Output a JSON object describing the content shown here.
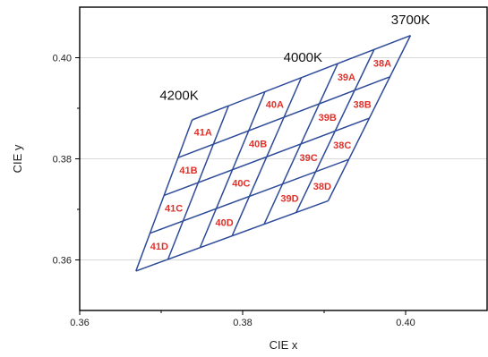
{
  "chart_data": {
    "type": "scatter",
    "title": "",
    "xlabel": "CIE x",
    "ylabel": "CIE y",
    "xlim": [
      0.36,
      0.41
    ],
    "ylim": [
      0.35,
      0.41
    ],
    "x_ticks": [
      0.36,
      0.38,
      0.4
    ],
    "y_ticks": [
      0.36,
      0.38,
      0.4
    ],
    "x_tick_labels": [
      "0.36",
      "0.38",
      "0.40"
    ],
    "y_tick_labels": [
      "0.36",
      "0.38",
      "0.40"
    ],
    "grid": "horizontal",
    "colors": {
      "grid_line": "#2e4b9a",
      "bin_label": "#e0312a",
      "gridline": "#d9d9d9",
      "axis": "#000000"
    },
    "quadrangle_grid": {
      "rows": 4,
      "cols": 6,
      "corners": {
        "bottom_left": [
          0.3669,
          0.3578
        ],
        "bottom_right": [
          0.3905,
          0.3717
        ],
        "top_left": [
          0.3738,
          0.3877
        ],
        "top_right": [
          0.4006,
          0.4044
        ]
      }
    },
    "bins": [
      {
        "label": "41A",
        "row": 0,
        "col": 0
      },
      {
        "label": "40A",
        "row": 0,
        "col": 2
      },
      {
        "label": "39A",
        "row": 0,
        "col": 4
      },
      {
        "label": "38A",
        "row": 0,
        "col": 5
      },
      {
        "label": "41B",
        "row": 1,
        "col": 0
      },
      {
        "label": "40B",
        "row": 1,
        "col": 2
      },
      {
        "label": "39B",
        "row": 1,
        "col": 4
      },
      {
        "label": "38B",
        "row": 1,
        "col": 5
      },
      {
        "label": "41C",
        "row": 2,
        "col": 0
      },
      {
        "label": "40C",
        "row": 2,
        "col": 2
      },
      {
        "label": "39C",
        "row": 2,
        "col": 4
      },
      {
        "label": "38C",
        "row": 2,
        "col": 5
      },
      {
        "label": "41D",
        "row": 3,
        "col": 0
      },
      {
        "label": "40D",
        "row": 3,
        "col": 2
      },
      {
        "label": "39D",
        "row": 3,
        "col": 4
      },
      {
        "label": "38D",
        "row": 3,
        "col": 5
      }
    ],
    "annotations": [
      {
        "text": "4200K",
        "x": 0.3722,
        "y": 0.3917
      },
      {
        "text": "4000K",
        "x": 0.3874,
        "y": 0.3992
      },
      {
        "text": "3700K",
        "x": 0.4006,
        "y": 0.4066
      }
    ]
  }
}
